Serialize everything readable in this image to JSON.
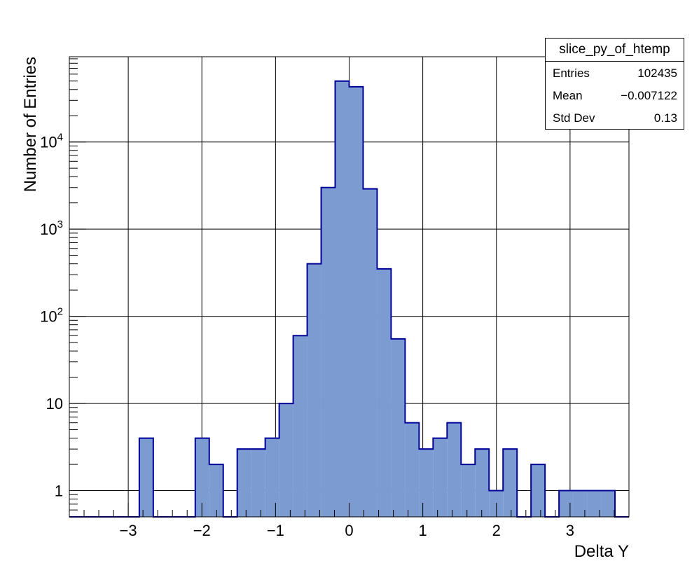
{
  "chart_data": {
    "type": "bar",
    "title": "",
    "xlabel": "Delta Y",
    "ylabel": "Number of Entries",
    "xlim": [
      -3.8,
      3.8
    ],
    "ylim": [
      0.5,
      95000
    ],
    "log_y": true,
    "grid": true,
    "bin_width": 0.19,
    "bin_edges_start": -3.8,
    "x_ticks": [
      "−3",
      "−2",
      "−1",
      "0",
      "1",
      "2",
      "3"
    ],
    "x_tick_values": [
      -3,
      -2,
      -1,
      0,
      1,
      2,
      3
    ],
    "y_ticks": [
      {
        "value": 1,
        "base": "1",
        "exp": ""
      },
      {
        "value": 10,
        "base": "10",
        "exp": ""
      },
      {
        "value": 100,
        "base": "10",
        "exp": "2"
      },
      {
        "value": 1000,
        "base": "10",
        "exp": "3"
      },
      {
        "value": 10000,
        "base": "10",
        "exp": "4"
      }
    ],
    "values": [
      0,
      0,
      0,
      0,
      0,
      4,
      0,
      0,
      0,
      4,
      2,
      0,
      3,
      3,
      4,
      10,
      60,
      400,
      3000,
      50000,
      43000,
      2900,
      350,
      55,
      6,
      3,
      4,
      6,
      2,
      3,
      1,
      3,
      0,
      2,
      0,
      1,
      1,
      1,
      1,
      0
    ],
    "fill_color": "#7b9bd1",
    "line_color": "#000099"
  },
  "stats_box": {
    "title": "slice_py_of_htemp",
    "rows": [
      {
        "key": "Entries",
        "value": "102435"
      },
      {
        "key": "Mean",
        "value": "−0.007122"
      },
      {
        "key": "Std Dev",
        "value": "0.13"
      }
    ]
  }
}
